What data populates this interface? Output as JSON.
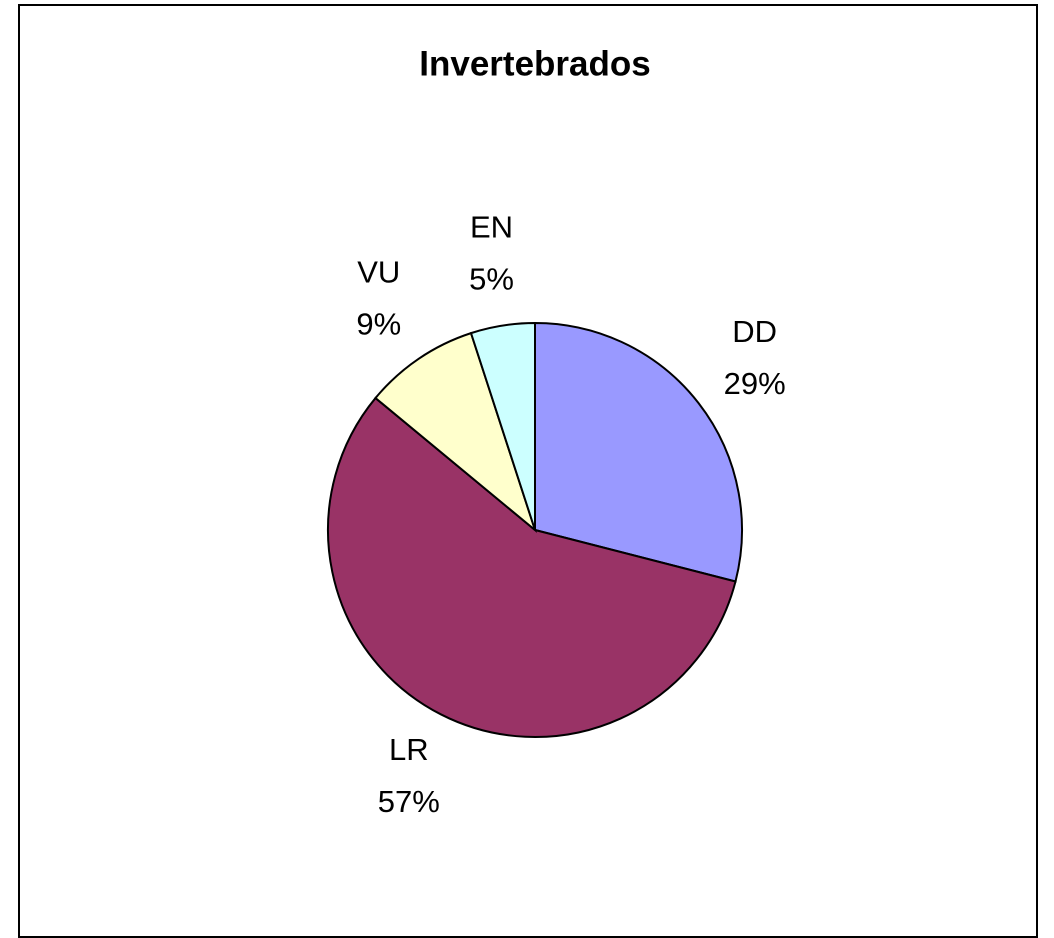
{
  "chart_data": {
    "type": "pie",
    "title": "Invertebrados",
    "categories": [
      "DD",
      "LR",
      "VU",
      "EN"
    ],
    "values": [
      29,
      57,
      9,
      5
    ],
    "value_labels": [
      "29%",
      "57%",
      "9%",
      "5%"
    ],
    "colors": [
      "#9999ff",
      "#993366",
      "#ffffcc",
      "#ccffff"
    ]
  }
}
